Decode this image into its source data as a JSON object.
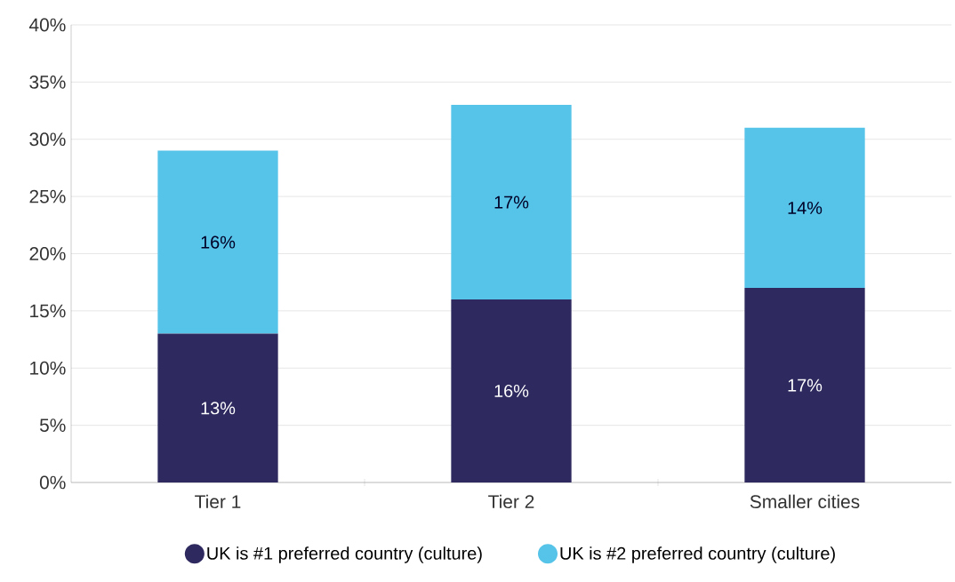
{
  "chart_data": {
    "type": "bar",
    "stacked": true,
    "categories": [
      "Tier 1",
      "Tier 2",
      "Smaller cities"
    ],
    "series": [
      {
        "name": "UK is #1 preferred country (culture)",
        "color": "#2e2a5f",
        "values": [
          13,
          16,
          17
        ],
        "value_labels": [
          "13%",
          "16%",
          "17%"
        ]
      },
      {
        "name": "UK is #2 preferred country (culture)",
        "color": "#56c3e8",
        "values": [
          16,
          17,
          14
        ],
        "value_labels": [
          "16%",
          "17%",
          "14%"
        ]
      }
    ],
    "ylim": [
      0,
      40
    ],
    "yticks": [
      {
        "value": 0,
        "label": "0%"
      },
      {
        "value": 5,
        "label": "5%"
      },
      {
        "value": 10,
        "label": "10%"
      },
      {
        "value": 15,
        "label": "15%"
      },
      {
        "value": 20,
        "label": "20%"
      },
      {
        "value": 25,
        "label": "25%"
      },
      {
        "value": 30,
        "label": "30%"
      },
      {
        "value": 35,
        "label": "35%"
      },
      {
        "value": 40,
        "label": "40%"
      }
    ],
    "grid": "y",
    "legend": "bottom"
  }
}
